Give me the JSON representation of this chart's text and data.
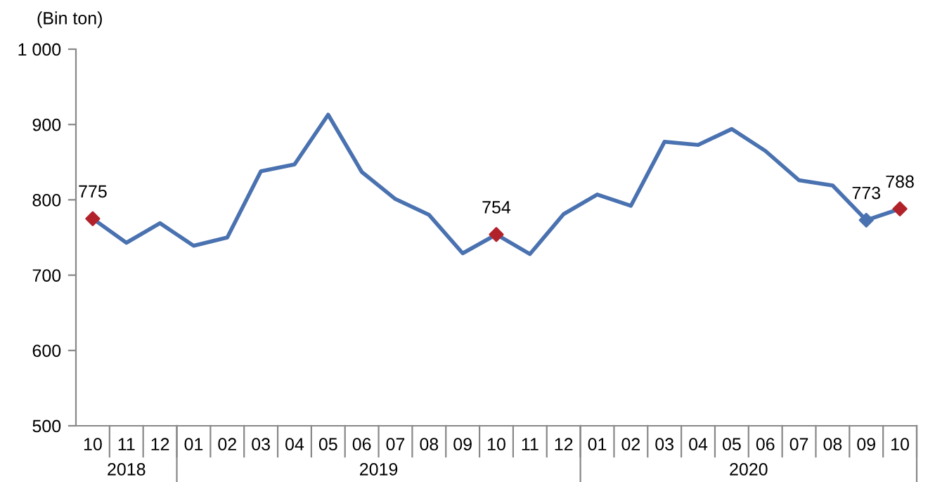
{
  "chart_data": {
    "type": "line",
    "ylabel": "(Bin ton)",
    "categories": [
      "10",
      "11",
      "12",
      "01",
      "02",
      "03",
      "04",
      "05",
      "06",
      "07",
      "08",
      "09",
      "10",
      "11",
      "12",
      "01",
      "02",
      "03",
      "04",
      "05",
      "06",
      "07",
      "08",
      "09",
      "10"
    ],
    "annotations": [
      "2018",
      "2019",
      "2020"
    ],
    "series": [
      {
        "color": "#4a72b0",
        "marker": "none",
        "values": [
          775,
          743,
          769,
          739,
          750,
          838,
          847,
          913,
          837,
          801,
          780,
          729,
          754,
          728,
          781,
          807,
          792,
          877,
          873,
          894,
          865,
          826,
          819,
          773,
          788
        ]
      },
      {
        "type": "scatter",
        "marker": "diamond",
        "colors": [
          "#b2222a",
          null,
          null,
          null,
          null,
          null,
          null,
          null,
          null,
          null,
          null,
          null,
          "#b2222a",
          null,
          null,
          null,
          null,
          null,
          null,
          null,
          null,
          null,
          null,
          "#4a72b0",
          "#b2222a"
        ],
        "values": [
          775,
          null,
          null,
          null,
          null,
          null,
          null,
          null,
          null,
          null,
          null,
          null,
          754,
          null,
          null,
          null,
          null,
          null,
          null,
          null,
          null,
          null,
          null,
          773,
          788
        ],
        "value_labels": [
          "775",
          null,
          null,
          null,
          null,
          null,
          null,
          null,
          null,
          null,
          null,
          null,
          "754",
          null,
          null,
          null,
          null,
          null,
          null,
          null,
          null,
          null,
          null,
          "773",
          "788"
        ]
      }
    ],
    "ylim": [
      500,
      1000
    ],
    "yticks": [
      500,
      600,
      700,
      800,
      900,
      {
        "value": 1000,
        "label": "1 000"
      }
    ],
    "grid": false,
    "legend": false
  }
}
